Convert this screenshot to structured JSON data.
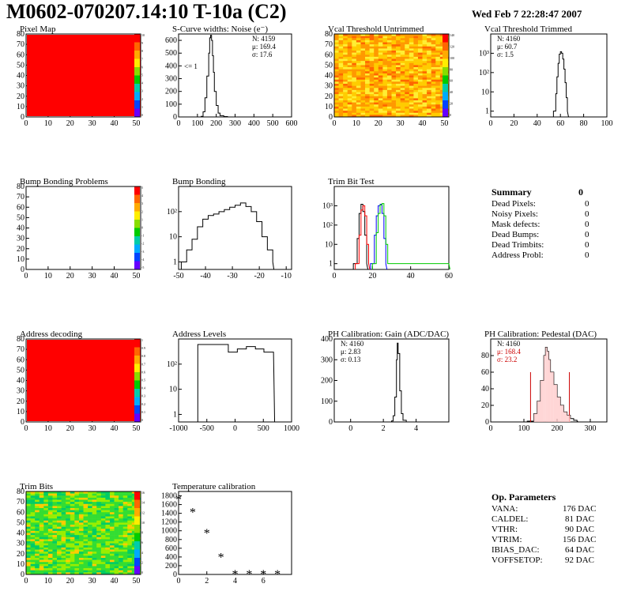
{
  "header": {
    "title": "M0602-070207.14:10 T-10a (C2)",
    "date": "Wed Feb  7 22:28:47 2007"
  },
  "summary": {
    "title": "Summary",
    "value": "0",
    "rows": [
      {
        "label": "Dead Pixels:",
        "value": "0"
      },
      {
        "label": "Noisy Pixels:",
        "value": "0"
      },
      {
        "label": "Mask defects:",
        "value": "0"
      },
      {
        "label": "Dead Bumps:",
        "value": "0"
      },
      {
        "label": "Dead Trimbits:",
        "value": "0"
      },
      {
        "label": "Address Probl:",
        "value": "0"
      }
    ]
  },
  "op_params": {
    "title": "Op. Parameters",
    "rows": [
      {
        "label": "VANA:",
        "value": "176 DAC"
      },
      {
        "label": "CALDEL:",
        "value": "81 DAC"
      },
      {
        "label": "VTHR:",
        "value": "90 DAC"
      },
      {
        "label": "VTRIM:",
        "value": "156 DAC"
      },
      {
        "label": "IBIAS_DAC:",
        "value": "64 DAC"
      },
      {
        "label": "VOFFSETOP:",
        "value": "92 DAC"
      }
    ]
  },
  "colors": {
    "red": "#ff0000",
    "green": "#00cc00",
    "blue": "#0000ff",
    "black": "#000000"
  },
  "chart_data": [
    {
      "type": "heatmap",
      "title": "Pixel Map",
      "xlim": [
        0,
        52
      ],
      "ylim": [
        0,
        80
      ],
      "xticks": [
        "0",
        "10",
        "20",
        "30",
        "40",
        "50"
      ],
      "yticks": [
        "0",
        "10",
        "20",
        "30",
        "40",
        "50",
        "60",
        "70",
        "80"
      ],
      "palette_labels": [
        "10",
        "9",
        "8",
        "7",
        "6",
        "5",
        "4",
        "3",
        "2",
        "1",
        "0"
      ],
      "fill": "uniform-max"
    },
    {
      "type": "line",
      "title": "S-Curve widths: Noise (e⁻)",
      "xlim": [
        0,
        600
      ],
      "ylim": [
        0,
        650
      ],
      "xticks": [
        "0",
        "100",
        "200",
        "300",
        "400",
        "500",
        "600"
      ],
      "yticks": [
        "0",
        "100",
        "200",
        "300",
        "400",
        "500",
        "600"
      ],
      "stats": [
        "N: 4159",
        "μ: 169.4",
        "σ: 17.6"
      ],
      "annotation": "<= 1",
      "series": [
        {
          "x": [
            100,
            120,
            130,
            140,
            150,
            160,
            165,
            170,
            175,
            180,
            185,
            190,
            200,
            210,
            220,
            240,
            260
          ],
          "y": [
            0,
            5,
            40,
            150,
            320,
            500,
            620,
            640,
            600,
            480,
            350,
            200,
            90,
            30,
            10,
            3,
            0
          ]
        }
      ]
    },
    {
      "type": "heatmap",
      "title": "Vcal Threshold Untrimmed",
      "xlim": [
        0,
        52
      ],
      "ylim": [
        0,
        80
      ],
      "xticks": [
        "0",
        "10",
        "20",
        "30",
        "40",
        "50"
      ],
      "yticks": [
        "0",
        "10",
        "20",
        "30",
        "40",
        "50",
        "60",
        "70",
        "80"
      ],
      "palette_labels": [
        "140",
        "120",
        "100",
        "80",
        "60",
        "40",
        "20",
        "0"
      ],
      "fill": "orange-yellow-noise"
    },
    {
      "type": "line",
      "title": "Vcal Threshold Trimmed",
      "yscale": "log",
      "xlim": [
        0,
        100
      ],
      "xticks": [
        "0",
        "20",
        "40",
        "60",
        "80",
        "100"
      ],
      "yticks": [
        "1",
        "10",
        "10²",
        "10³"
      ],
      "stats": [
        "N: 4160",
        "μ: 60.7",
        "σ:  1.5"
      ],
      "series": [
        {
          "x": [
            54,
            56,
            57,
            58,
            59,
            60,
            61,
            62,
            63,
            64,
            65,
            66
          ],
          "y": [
            1,
            8,
            60,
            300,
            900,
            1200,
            1000,
            500,
            150,
            30,
            5,
            1
          ]
        }
      ]
    },
    {
      "type": "heatmap",
      "title": "Bump Bonding Problems",
      "xlim": [
        0,
        52
      ],
      "ylim": [
        0,
        80
      ],
      "xticks": [
        "0",
        "10",
        "20",
        "30",
        "40",
        "50"
      ],
      "yticks": [
        "0",
        "10",
        "20",
        "30",
        "40",
        "50",
        "60",
        "70",
        "80"
      ],
      "palette_labels": [
        "5",
        "4",
        "3",
        "2",
        "1",
        "0",
        "-1",
        "-2",
        "-3",
        "-4",
        "-5"
      ],
      "fill": "empty"
    },
    {
      "type": "line",
      "title": "Bump Bonding",
      "yscale": "log",
      "xlim": [
        -50,
        -8
      ],
      "xticks": [
        "-50",
        "-40",
        "-30",
        "-20",
        "-10"
      ],
      "yticks": [
        "1",
        "10",
        "10²"
      ],
      "series": [
        {
          "x": [
            -49,
            -47,
            -45,
            -43,
            -41,
            -39,
            -37,
            -35,
            -33,
            -31,
            -29,
            -27,
            -25,
            -23,
            -21,
            -19,
            -17,
            -15
          ],
          "y": [
            1,
            3,
            8,
            25,
            50,
            70,
            80,
            100,
            120,
            150,
            180,
            220,
            160,
            100,
            40,
            10,
            3,
            1
          ]
        }
      ]
    },
    {
      "type": "line",
      "title": "Trim Bit Test",
      "yscale": "log",
      "xlim": [
        0,
        60
      ],
      "xticks": [
        "0",
        "20",
        "40",
        "60"
      ],
      "yticks": [
        "1",
        "10",
        "10²",
        "10³"
      ],
      "series": [
        {
          "color": "black",
          "x": [
            10,
            12,
            13,
            14,
            15,
            16,
            17
          ],
          "y": [
            1,
            20,
            400,
            1200,
            500,
            30,
            1
          ]
        },
        {
          "color": "red",
          "x": [
            11,
            13,
            14,
            15,
            16,
            17,
            18
          ],
          "y": [
            1,
            30,
            600,
            1000,
            300,
            10,
            1
          ]
        },
        {
          "color": "blue",
          "x": [
            19,
            21,
            22,
            23,
            24,
            25,
            26,
            27
          ],
          "y": [
            1,
            30,
            300,
            1000,
            1200,
            400,
            20,
            1
          ]
        },
        {
          "color": "green",
          "x": [
            20,
            22,
            23,
            24,
            25,
            26,
            27,
            28,
            60
          ],
          "y": [
            1,
            40,
            400,
            1100,
            1300,
            300,
            10,
            1,
            1
          ]
        }
      ]
    },
    {
      "type": "heatmap",
      "title": "Address decoding",
      "xlim": [
        0,
        52
      ],
      "ylim": [
        0,
        80
      ],
      "xticks": [
        "0",
        "10",
        "20",
        "30",
        "40",
        "50"
      ],
      "yticks": [
        "0",
        "10",
        "20",
        "30",
        "40",
        "50",
        "60",
        "70",
        "80"
      ],
      "palette_labels": [
        "1",
        "0.9",
        "0.8",
        "0.7",
        "0.6",
        "0.5",
        "0.4",
        "0.3",
        "0.2",
        "0.1",
        "0"
      ],
      "fill": "uniform-max"
    },
    {
      "type": "line",
      "title": "Address Levels",
      "yscale": "log",
      "xlim": [
        -1000,
        1000
      ],
      "xticks": [
        "-1000",
        "-500",
        "0",
        "500",
        "1000"
      ],
      "yticks": [
        "1",
        "10",
        "10²"
      ],
      "series": [
        {
          "x": [
            -660,
            -640,
            -120,
            -100,
            40,
            60,
            200,
            220,
            360,
            380,
            510,
            530,
            660,
            680
          ],
          "y": [
            600,
            600,
            300,
            300,
            400,
            400,
            500,
            500,
            400,
            400,
            300,
            300,
            300,
            300
          ]
        }
      ]
    },
    {
      "type": "line",
      "title": "PH Calibration: Gain (ADC/DAC)",
      "xlim": [
        -1,
        6
      ],
      "ylim": [
        0,
        400
      ],
      "xticks": [
        "0",
        "2",
        "4"
      ],
      "yticks": [
        "0",
        "100",
        "200",
        "300",
        "400"
      ],
      "stats": [
        "N: 4160",
        "μ: 2.83",
        "σ: 0.13"
      ],
      "series": [
        {
          "x": [
            2.3,
            2.5,
            2.6,
            2.7,
            2.8,
            2.85,
            2.9,
            3.0,
            3.1,
            3.2,
            3.4
          ],
          "y": [
            0,
            5,
            30,
            120,
            300,
            380,
            330,
            150,
            40,
            8,
            0
          ]
        }
      ]
    },
    {
      "type": "line",
      "title": "PH Calibration: Pedestal (DAC)",
      "xlim": [
        0,
        350
      ],
      "ylim": [
        0,
        100
      ],
      "xticks": [
        "0",
        "100",
        "200",
        "300"
      ],
      "yticks": [
        "0",
        "20",
        "40",
        "60",
        "80"
      ],
      "stats": [
        "N: 4160",
        "μ: 168.4",
        "σ: 23.2"
      ],
      "markers_x": [
        120,
        237
      ],
      "series": [
        {
          "x": [
            110,
            130,
            140,
            150,
            160,
            165,
            170,
            175,
            180,
            190,
            200,
            210,
            220,
            230,
            240,
            250,
            260
          ],
          "y": [
            1,
            10,
            25,
            50,
            80,
            90,
            85,
            75,
            60,
            45,
            30,
            20,
            12,
            8,
            4,
            2,
            1
          ]
        }
      ]
    },
    {
      "type": "heatmap",
      "title": "Trim Bits",
      "xlim": [
        0,
        52
      ],
      "ylim": [
        0,
        80
      ],
      "xticks": [
        "0",
        "10",
        "20",
        "30",
        "40",
        "50"
      ],
      "yticks": [
        "0",
        "10",
        "20",
        "30",
        "40",
        "50",
        "60",
        "70",
        "80"
      ],
      "palette_labels": [
        "16",
        "14",
        "12",
        "10",
        "8",
        "6",
        "4",
        "2",
        "0"
      ],
      "fill": "green-noise"
    },
    {
      "type": "scatter",
      "title": "Temperature calibration",
      "xlim": [
        0,
        8
      ],
      "ylim": [
        0,
        1900
      ],
      "xticks": [
        "0",
        "2",
        "4",
        "6"
      ],
      "yticks": [
        "0",
        "200",
        "400",
        "600",
        "800",
        "1000",
        "1200",
        "1400",
        "1600",
        "1800"
      ],
      "series": [
        {
          "x": [
            0,
            1,
            2,
            3,
            4,
            5,
            6,
            7
          ],
          "y": [
            1710,
            1420,
            940,
            390,
            0,
            0,
            0,
            0
          ]
        }
      ]
    }
  ]
}
